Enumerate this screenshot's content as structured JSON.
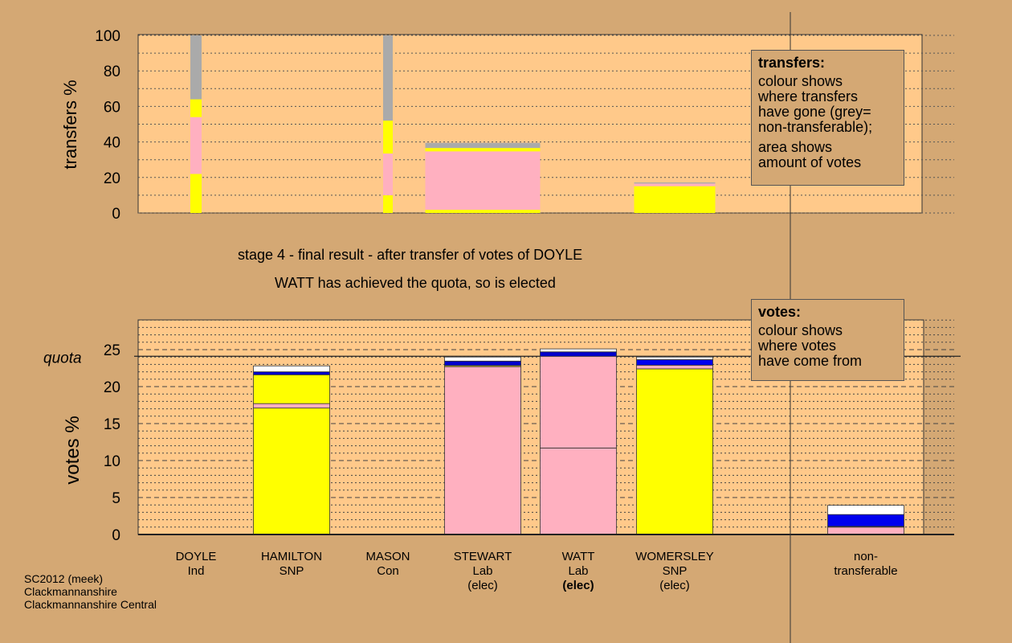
{
  "title_line1": "stage 4 - final result - after transfer of votes of DOYLE",
  "title_line2": "WATT has achieved the quota, so is elected",
  "footer": [
    "SC2012 (meek)",
    "Clackmannanshire",
    "Clackmannanshire Central"
  ],
  "legend_transfers": {
    "title": "transfers:",
    "lines": [
      "colour shows",
      "where transfers",
      "have gone (grey=",
      "non-transferable);"
    ],
    "lines2": [
      "area shows",
      "amount of votes"
    ]
  },
  "legend_votes": {
    "title": "votes:",
    "lines": [
      "colour shows",
      "where votes",
      "have come from"
    ]
  },
  "candidates": [
    {
      "name": "DOYLE",
      "party": "Ind",
      "status": ""
    },
    {
      "name": "HAMILTON",
      "party": "SNP",
      "status": ""
    },
    {
      "name": "MASON",
      "party": "Con",
      "status": ""
    },
    {
      "name": "STEWART",
      "party": "Lab",
      "status": "(elec)"
    },
    {
      "name": "WATT",
      "party": "Lab",
      "status": "(elec)"
    },
    {
      "name": "WOMERSLEY",
      "party": "SNP",
      "status": "(elec)"
    },
    {
      "name": "non-",
      "party": "transferable",
      "status": ""
    }
  ],
  "colors": {
    "background": "#d4a874",
    "plot": "#ffc98a",
    "SNP": "#ffff00",
    "Lab": "#ffb0c0",
    "Con": "#0000ee",
    "Ind": "#ffffff",
    "nontransferable": "#aaaaaa"
  },
  "chart_data": [
    {
      "type": "bar",
      "title": "transfers",
      "ylabel": "transfers %",
      "ylim": [
        0,
        100
      ],
      "yticks": [
        "0",
        "20",
        "40",
        "60",
        "80",
        "100"
      ],
      "grid": true,
      "stacks": [
        {
          "candidate": "DOYLE",
          "segments": [
            {
              "color": "#ffff00",
              "to": 22
            },
            {
              "color": "#ffb0c0",
              "to": 54
            },
            {
              "color": "#ffff00",
              "to": 64
            },
            {
              "color": "#aaaaaa",
              "to": 100
            }
          ]
        },
        {
          "candidate": "MASON",
          "segments": [
            {
              "color": "#ffff00",
              "to": 10
            },
            {
              "color": "#ffb0c0",
              "to": 33.5
            },
            {
              "color": "#ffff00",
              "to": 52
            },
            {
              "color": "#aaaaaa",
              "to": 100
            }
          ]
        },
        {
          "candidate": "STEWART",
          "segments": [
            {
              "color": "#ffff00",
              "to": 1.8
            },
            {
              "color": "#ffb0c0",
              "to": 34.7
            },
            {
              "color": "#ffff00",
              "to": 36.6
            },
            {
              "color": "#aaaaaa",
              "to": 39.5
            }
          ]
        },
        {
          "candidate": "WOMERSLEY",
          "segments": [
            {
              "color": "#ffff00",
              "to": 15.1
            },
            {
              "color": "#ffb0c0",
              "to": 16.6
            },
            {
              "color": "#aaaaaa",
              "to": 17.2
            }
          ]
        }
      ]
    },
    {
      "type": "bar",
      "title": "votes",
      "ylabel": "votes %",
      "ylim": [
        0,
        29
      ],
      "yticks": [
        "0",
        "5",
        "10",
        "15",
        "20",
        "25"
      ],
      "quota": 24.1,
      "quota_label": "quota",
      "grid": true,
      "stacks": [
        {
          "candidate": "HAMILTON",
          "segments": [
            {
              "color": "#ffff00",
              "to": 17.1
            },
            {
              "color": "#ffb0c0",
              "to": 17.7
            },
            {
              "color": "#ffff00",
              "to": 21.6
            },
            {
              "color": "#0000cc",
              "to": 22.0
            },
            {
              "color": "#ffffff",
              "to": 22.8
            }
          ]
        },
        {
          "candidate": "STEWART",
          "segments": [
            {
              "color": "#ffb0c0",
              "to": 22.7
            },
            {
              "color": "#ffff00",
              "to": 22.85
            },
            {
              "color": "#0000cc",
              "to": 23.45
            },
            {
              "color": "#ffffff",
              "to": 24.0
            }
          ]
        },
        {
          "candidate": "WATT",
          "segments": [
            {
              "color": "#ffb0c0",
              "to": 11.7
            },
            {
              "color": "#ffb0c0",
              "to": 24.1
            },
            {
              "color": "#0000cc",
              "to": 24.7
            },
            {
              "color": "#ffffff",
              "to": 25.1
            }
          ]
        },
        {
          "candidate": "WOMERSLEY",
          "segments": [
            {
              "color": "#ffff00",
              "to": 22.4
            },
            {
              "color": "#ffb0c0",
              "to": 22.9
            },
            {
              "color": "#0000ee",
              "to": 23.65
            },
            {
              "color": "#ffffff",
              "to": 24.0
            }
          ]
        },
        {
          "candidate": "non-transferable",
          "segments": [
            {
              "color": "#ffb0c0",
              "to": 1.0
            },
            {
              "color": "#ffff00",
              "to": 1.1
            },
            {
              "color": "#0000ee",
              "to": 2.7
            },
            {
              "color": "#ffffff",
              "to": 3.95
            }
          ]
        }
      ]
    }
  ]
}
